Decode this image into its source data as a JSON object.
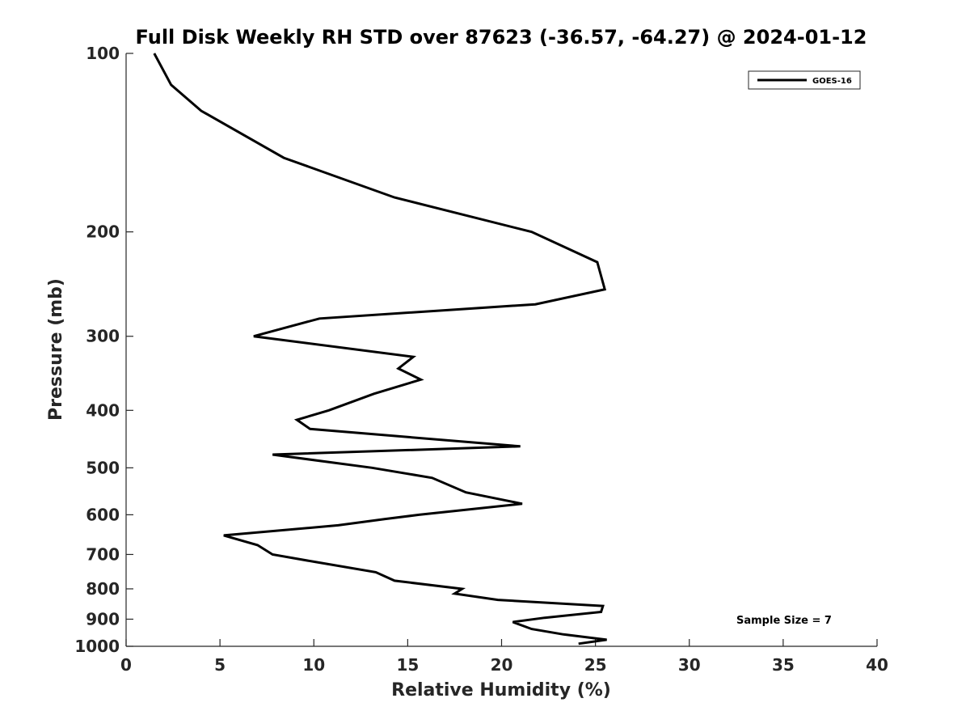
{
  "chart_data": {
    "type": "line",
    "title": "Full Disk Weekly RH STD over 87623 (-36.57, -64.27) @ 2024-01-12",
    "xlabel": "Relative Humidity (%)",
    "ylabel": "Pressure (mb)",
    "xlim": [
      0,
      40
    ],
    "ylim": [
      100,
      1000
    ],
    "y_scale": "log",
    "y_reversed": true,
    "x_ticks": [
      0,
      5,
      10,
      15,
      20,
      25,
      30,
      35,
      40
    ],
    "x_tick_labels": [
      "0",
      "5",
      "10",
      "15",
      "20",
      "25",
      "30",
      "35",
      "40"
    ],
    "y_ticks": [
      100,
      200,
      300,
      400,
      500,
      600,
      700,
      800,
      900,
      1000
    ],
    "y_tick_labels": [
      "100",
      "200",
      "300",
      "400",
      "500",
      "600",
      "700",
      "800",
      "900",
      "1000"
    ],
    "grid": false,
    "legend_position": "top-right",
    "series": [
      {
        "name": "GOES-16",
        "color": "#000000",
        "x": [
          1.5,
          2.4,
          4.0,
          8.4,
          14.3,
          21.6,
          25.1,
          25.5,
          21.8,
          10.3,
          6.8,
          15.3,
          14.5,
          15.7,
          13.2,
          10.8,
          9.1,
          9.8,
          21.0,
          7.8,
          13.1,
          16.3,
          18.1,
          21.1,
          15.6,
          13.8,
          11.3,
          5.2,
          7.0,
          7.8,
          10.0,
          13.3,
          14.3,
          17.9,
          17.5,
          19.8,
          25.4,
          25.3,
          22.3,
          20.6,
          21.6,
          23.3,
          25.6,
          24.1
        ],
        "y": [
          100,
          113,
          125,
          150,
          175,
          200,
          225,
          250,
          265,
          280,
          300,
          325,
          340,
          355,
          375,
          400,
          415,
          430,
          460,
          475,
          500,
          520,
          550,
          575,
          600,
          610,
          625,
          650,
          675,
          700,
          720,
          750,
          775,
          800,
          815,
          835,
          855,
          875,
          895,
          910,
          935,
          955,
          975,
          990
        ]
      }
    ],
    "annotations": [
      "Sample Size = 7"
    ]
  }
}
